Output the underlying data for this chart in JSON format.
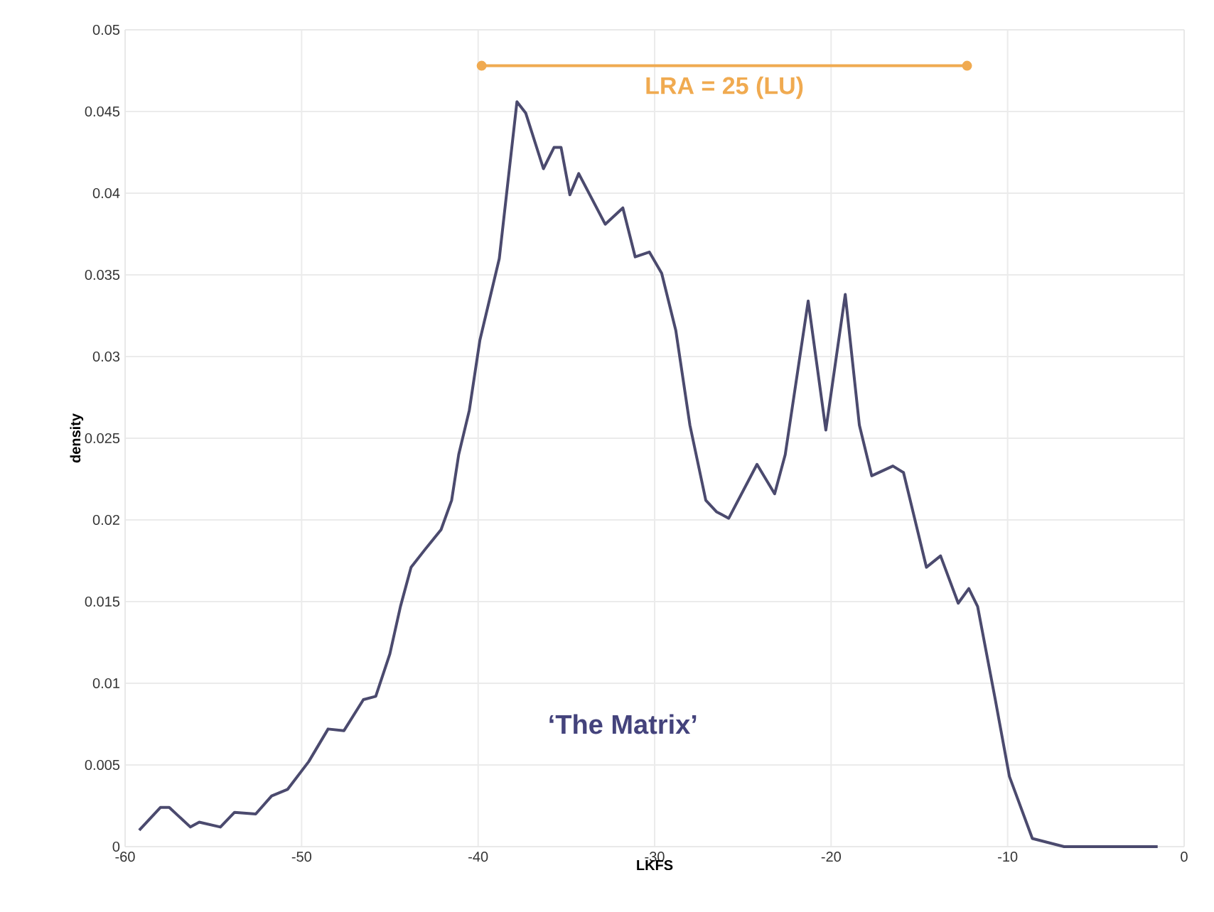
{
  "chart_data": {
    "type": "line",
    "xlabel": "LKFS",
    "ylabel": "density",
    "x": [
      -59.2,
      -58.0,
      -57.5,
      -56.3,
      -55.8,
      -54.6,
      -53.8,
      -52.6,
      -51.7,
      -50.8,
      -49.6,
      -48.5,
      -47.6,
      -46.5,
      -45.8,
      -45.0,
      -44.4,
      -43.8,
      -43.0,
      -42.1,
      -41.5,
      -41.1,
      -40.5,
      -39.9,
      -38.8,
      -37.8,
      -37.3,
      -36.3,
      -35.7,
      -35.3,
      -34.8,
      -34.3,
      -32.8,
      -31.8,
      -31.1,
      -30.3,
      -29.6,
      -28.8,
      -28.0,
      -27.1,
      -26.5,
      -25.8,
      -24.2,
      -23.2,
      -22.6,
      -21.3,
      -20.3,
      -19.2,
      -18.4,
      -17.7,
      -16.5,
      -15.9,
      -14.6,
      -13.8,
      -12.8,
      -12.2,
      -11.7,
      -10.7,
      -9.9,
      -8.6,
      -6.8,
      -4,
      -1.5
    ],
    "series": [
      {
        "color": "#4b4a6e",
        "values": [
          0.001,
          0.0024,
          0.0024,
          0.0012,
          0.0015,
          0.0012,
          0.0021,
          0.002,
          0.0031,
          0.0035,
          0.0052,
          0.0072,
          0.0071,
          0.009,
          0.0092,
          0.0118,
          0.0147,
          0.0171,
          0.0182,
          0.0194,
          0.0212,
          0.024,
          0.0267,
          0.031,
          0.036,
          0.0456,
          0.0449,
          0.0415,
          0.0428,
          0.0428,
          0.0399,
          0.0412,
          0.0381,
          0.0391,
          0.0361,
          0.0364,
          0.0351,
          0.0316,
          0.0258,
          0.0212,
          0.0205,
          0.0201,
          0.0234,
          0.0216,
          0.024,
          0.0334,
          0.0255,
          0.0338,
          0.0258,
          0.0227,
          0.0233,
          0.0229,
          0.0171,
          0.0178,
          0.0149,
          0.0158,
          0.0147,
          0.009,
          0.0043,
          0.0005,
          0,
          0,
          0
        ]
      },
      {
        "name": "LRA = 25 (LU)",
        "color": "#f0aa50",
        "marker": "circle",
        "x": [
          -39.8,
          -12.3
        ],
        "values": [
          0.0478,
          0.0478
        ]
      }
    ],
    "xlim": [
      -60,
      0
    ],
    "ylim": [
      0,
      0.05
    ],
    "xticks": [
      -60,
      -50,
      -40,
      -30,
      -20,
      -10,
      0
    ],
    "yticks": [
      0,
      0.005,
      0.01,
      0.015,
      0.02,
      0.025,
      0.03,
      0.035,
      0.04,
      0.045,
      0.05
    ],
    "grid": true,
    "annotations": [
      "‘The Matrix’"
    ]
  }
}
